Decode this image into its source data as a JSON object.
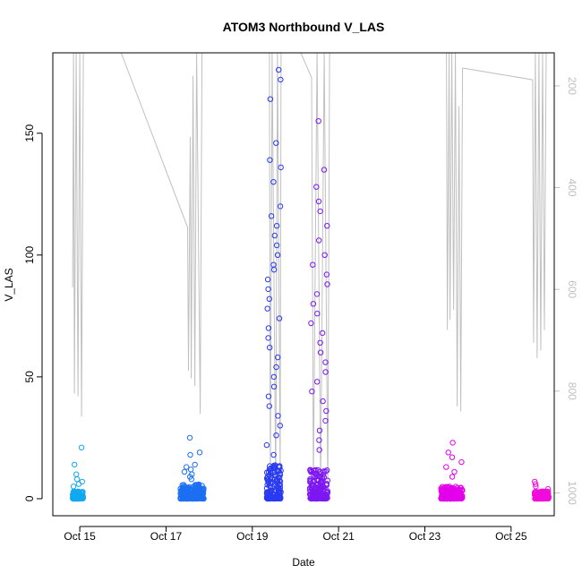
{
  "chart_data": {
    "type": "scatter",
    "title": "ATOM3 Northbound V_LAS",
    "xlabel": "Date",
    "ylabel": "V_LAS",
    "x_ticks": [
      "Oct 15",
      "Oct 17",
      "Oct 19",
      "Oct 21",
      "Oct 23",
      "Oct 25"
    ],
    "xlim": [
      "2014-10-14T09:00",
      "2014-10-26T00:00"
    ],
    "ylim": [
      -7,
      183
    ],
    "y_ticks": [
      0,
      50,
      100,
      150
    ],
    "y2_ticks": [
      200,
      400,
      600,
      800,
      1000
    ],
    "y2_lim": [
      1045,
      135
    ],
    "y2_reversed": true,
    "grid": false,
    "point_color_gradient": [
      "#00aaee",
      "#ff00ff"
    ],
    "series": [
      {
        "kind": "points",
        "clusters": [
          {
            "start": "2014-10-14T20:00",
            "end": "2014-10-15T02:00",
            "color": "#11a8f0",
            "bulk_max": 3,
            "peaks": [
              21,
              14,
              10,
              8,
              7,
              6,
              5
            ]
          },
          {
            "start": "2014-10-17T08:00",
            "end": "2014-10-17T21:00",
            "color": "#1c6ff2",
            "bulk_max": 6,
            "peaks": [
              25,
              19,
              18,
              14,
              13,
              12,
              11,
              10,
              9,
              8
            ]
          },
          {
            "start": "2014-10-19T08:00",
            "end": "2014-10-19T16:00",
            "color": "#2a3af0",
            "bulk_max": 14,
            "peaks": [
              176,
              172,
              164,
              146,
              139,
              136,
              130,
              120,
              116,
              112,
              108,
              104,
              100,
              96,
              94,
              90,
              86,
              82,
              78,
              74,
              70,
              66,
              62,
              58,
              54,
              50,
              46,
              42,
              38,
              34,
              30,
              26,
              22,
              18
            ]
          },
          {
            "start": "2014-10-20T08:00",
            "end": "2014-10-20T18:00",
            "color": "#7d18f2",
            "bulk_max": 12,
            "peaks": [
              155,
              135,
              128,
              122,
              118,
              112,
              106,
              100,
              96,
              92,
              88,
              84,
              80,
              76,
              72,
              68,
              64,
              60,
              56,
              52,
              48,
              44,
              40,
              36,
              32,
              28,
              24,
              20
            ]
          },
          {
            "start": "2014-10-23T09:00",
            "end": "2014-10-23T21:00",
            "color": "#e300ea",
            "bulk_max": 5,
            "peaks": [
              23,
              19,
              17,
              15,
              13,
              11,
              9
            ]
          },
          {
            "start": "2014-10-25T13:00",
            "end": "2014-10-25T21:00",
            "color": "#f00cdc",
            "bulk_max": 3,
            "peaks": [
              7,
              6,
              5,
              4
            ]
          }
        ]
      },
      {
        "kind": "line",
        "axis": "right",
        "color": "#c0c0c0",
        "points": [
          [
            "2014-10-14T20:00",
            596
          ],
          [
            "2014-10-14T20:30",
            135
          ],
          [
            "2014-10-14T21:00",
            805
          ],
          [
            "2014-10-14T22:00",
            135
          ],
          [
            "2014-10-14T23:00",
            810
          ],
          [
            "2014-10-15T00:00",
            135
          ],
          [
            "2014-10-15T01:00",
            850
          ],
          [
            "2014-10-15T02:00",
            135
          ],
          [
            "2014-10-15T23:00",
            135
          ],
          [
            "2014-10-17T12:00",
            478
          ],
          [
            "2014-10-17T12:30",
            760
          ],
          [
            "2014-10-17T13:30",
            300
          ],
          [
            "2014-10-17T14:00",
            775
          ],
          [
            "2014-10-17T15:00",
            180
          ],
          [
            "2014-10-17T16:00",
            790
          ],
          [
            "2014-10-17T17:00",
            135
          ],
          [
            "2014-10-17T19:00",
            845
          ],
          [
            "2014-10-17T20:00",
            135
          ],
          [
            "2014-10-19T09:30",
            135
          ],
          [
            "2014-10-19T10:00",
            1000
          ],
          [
            "2014-10-19T11:00",
            135
          ],
          [
            "2014-10-19T13:00",
            990
          ],
          [
            "2014-10-19T14:00",
            135
          ],
          [
            "2014-10-19T15:30",
            970
          ],
          [
            "2014-10-19T16:00",
            135
          ],
          [
            "2014-10-20T03:00",
            135
          ],
          [
            "2014-10-20T09:00",
            184
          ],
          [
            "2014-10-20T10:00",
            980
          ],
          [
            "2014-10-20T12:00",
            135
          ],
          [
            "2014-10-20T14:00",
            990
          ],
          [
            "2014-10-20T16:00",
            135
          ],
          [
            "2014-10-20T18:00",
            1000
          ],
          [
            "2014-10-20T19:00",
            135
          ],
          [
            "2014-10-23T12:00",
            135
          ],
          [
            "2014-10-23T12:30",
            680
          ],
          [
            "2014-10-23T13:30",
            135
          ],
          [
            "2014-10-23T14:00",
            660
          ],
          [
            "2014-10-23T15:00",
            135
          ],
          [
            "2014-10-23T16:00",
            640
          ],
          [
            "2014-10-23T17:00",
            135
          ],
          [
            "2014-10-23T18:00",
            830
          ],
          [
            "2014-10-23T19:00",
            240
          ],
          [
            "2014-10-23T20:00",
            840
          ],
          [
            "2014-10-23T21:00",
            165
          ],
          [
            "2014-10-25T12:00",
            188
          ],
          [
            "2014-10-25T12:30",
            705
          ],
          [
            "2014-10-25T13:30",
            135
          ],
          [
            "2014-10-25T14:30",
            735
          ],
          [
            "2014-10-25T15:30",
            135
          ],
          [
            "2014-10-25T16:30",
            720
          ],
          [
            "2014-10-25T17:30",
            135
          ],
          [
            "2014-10-25T18:30",
            680
          ],
          [
            "2014-10-25T19:30",
            135
          ]
        ]
      }
    ]
  }
}
